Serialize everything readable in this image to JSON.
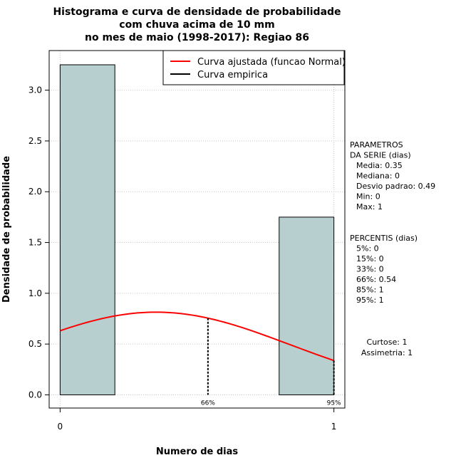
{
  "chart_data": {
    "type": "bar",
    "title_lines": [
      "Histograma e curva de densidade de probabilidade",
      "com chuva acima de 10 mm",
      "no mes de maio (1998-2017): Regiao 86"
    ],
    "xlabel": "Numero de dias",
    "ylabel": "Densidade de probabilidade",
    "xlim": [
      -0.04,
      1.04
    ],
    "ylim": [
      -0.13,
      3.39
    ],
    "x_ticks": [
      0,
      1
    ],
    "y_ticks": [
      0.0,
      0.5,
      1.0,
      1.5,
      2.0,
      2.5,
      3.0
    ],
    "y_tick_labels": [
      "0.0",
      "0.5",
      "1.0",
      "1.5",
      "2.0",
      "2.5",
      "3.0"
    ],
    "grid": true,
    "bar_color": "#b7cfcf",
    "bins": [
      {
        "x0": 0.0,
        "x1": 0.2,
        "density": 3.25
      },
      {
        "x0": 0.8,
        "x1": 1.0,
        "density": 1.75
      }
    ],
    "fitted_curve": {
      "name": "Curva ajustada (funcao Normal)",
      "color": "#ff0000",
      "mean": 0.35,
      "sd": 0.49,
      "x_range": [
        0,
        1
      ]
    },
    "empirical_curve": {
      "name": "Curva empirica",
      "color": "#000000"
    },
    "legend_position": "top-right",
    "percentile_markers": [
      {
        "x": 0.54,
        "label": "66%"
      },
      {
        "x": 1.0,
        "label": "95%"
      }
    ],
    "parameters_block": [
      "PARAMETROS",
      "DA SERIE (dias)",
      "Media: 0.35",
      "Mediana: 0",
      "Desvio padrao: 0.49",
      "Min: 0",
      "Max: 1"
    ],
    "percentis_block": [
      "PERCENTIS (dias)",
      "5%: 0",
      "15%: 0",
      "33%: 0",
      "66%: 0.54",
      "85%: 1",
      "95%: 1"
    ],
    "stats_block": [
      "Curtose: 1",
      "Assimetria: 1"
    ]
  }
}
